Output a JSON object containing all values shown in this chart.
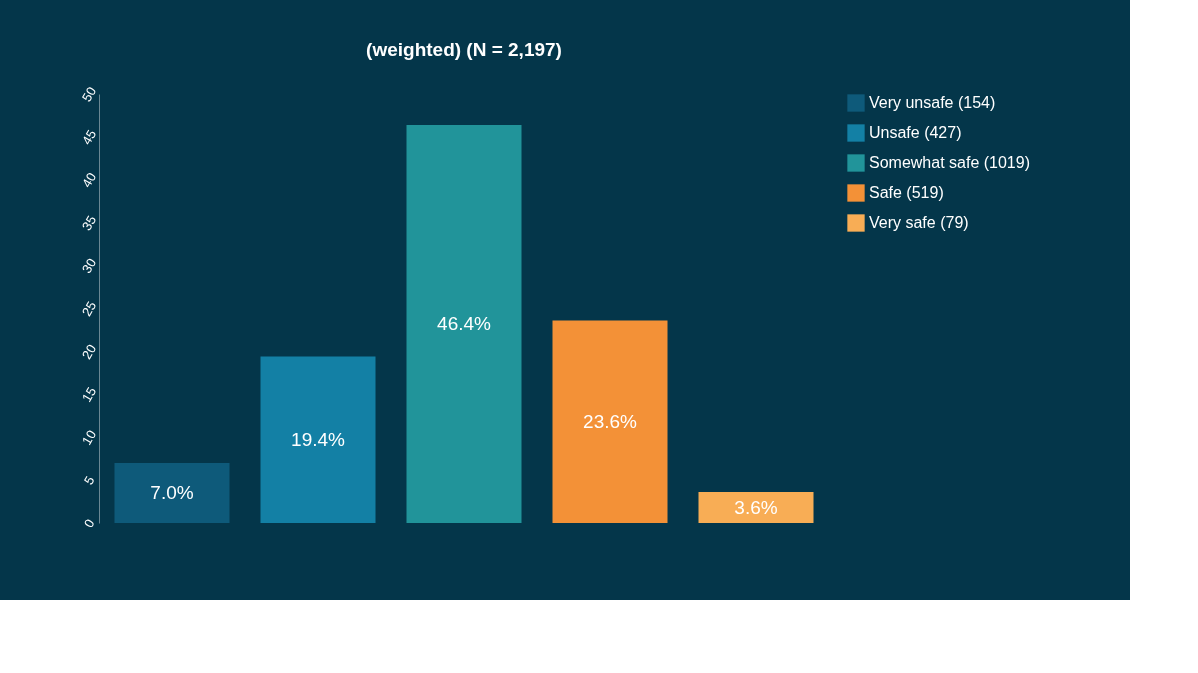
{
  "chart_data": {
    "type": "bar",
    "title": "(weighted) (N = 2,197)",
    "stacked": true,
    "categories": [
      null,
      null,
      null,
      null,
      null
    ],
    "series": [
      {
        "name": "Very unsafe (154)",
        "color": "#0e5a7a",
        "values": [
          7.0,
          null,
          null,
          null,
          null
        ],
        "value_labels": [
          "7.0%",
          null,
          null,
          null,
          null
        ]
      },
      {
        "name": "Unsafe (427)",
        "color": "#1380a5",
        "values": [
          null,
          19.4,
          null,
          null,
          null
        ],
        "value_labels": [
          null,
          "19.4%",
          null,
          null,
          null
        ]
      },
      {
        "name": "Somewhat safe (1019)",
        "color": "#21949a",
        "values": [
          null,
          null,
          46.4,
          null,
          null
        ],
        "value_labels": [
          null,
          null,
          "46.4%",
          null,
          null
        ]
      },
      {
        "name": "Safe (519)",
        "color": "#f39137",
        "values": [
          null,
          null,
          null,
          23.6,
          null
        ],
        "value_labels": [
          null,
          null,
          null,
          "23.6%",
          null
        ]
      },
      {
        "name": "Very safe (79)",
        "color": "#f8ad55",
        "values": [
          null,
          null,
          null,
          null,
          3.6
        ],
        "value_labels": [
          null,
          null,
          null,
          null,
          "3.6%"
        ]
      }
    ],
    "ylim": [
      0,
      50
    ],
    "yticks": [
      0,
      5,
      10,
      15,
      20,
      25,
      30,
      35,
      40,
      45,
      50
    ],
    "grid": false,
    "legend": "right",
    "tick_labels": "y"
  }
}
